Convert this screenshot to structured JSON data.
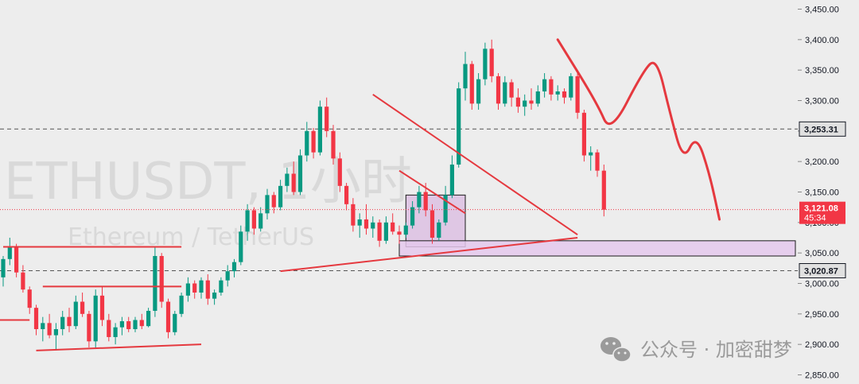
{
  "chart_data": {
    "type": "candlestick",
    "symbol_watermark": "ETHUSDT, 1小时",
    "pair_watermark": "Ethereum / TetherUS",
    "y_axis": {
      "ticks": [
        2850,
        2900,
        2950,
        3000,
        3050,
        3100,
        3150,
        3200,
        3250,
        3300,
        3350,
        3400,
        3450
      ],
      "tick_labels": [
        "2,850.00",
        "2,900.00",
        "2,950.00",
        "3,000.00",
        "3,050.00",
        "3,100.00",
        "3,150.00",
        "3,200.00",
        "3,250.00",
        "3,300.00",
        "3,350.00",
        "3,400.00",
        "3,450.00"
      ],
      "ylim": [
        2835,
        3465
      ]
    },
    "current_price": {
      "value": 3121.08,
      "label": "3,121.08",
      "countdown": "45:34",
      "color": "#f23645"
    },
    "horizontal_levels": [
      {
        "value": 3253.31,
        "label": "3,253.31"
      },
      {
        "value": 3020.87,
        "label": "3,020.87"
      }
    ],
    "candles": [
      {
        "o": 3010,
        "h": 3045,
        "l": 2995,
        "c": 3040
      },
      {
        "o": 3040,
        "h": 3075,
        "l": 3030,
        "c": 3060
      },
      {
        "o": 3060,
        "h": 3065,
        "l": 3010,
        "c": 3018
      },
      {
        "o": 3018,
        "h": 3030,
        "l": 2985,
        "c": 2990
      },
      {
        "o": 2990,
        "h": 2995,
        "l": 2950,
        "c": 2960
      },
      {
        "o": 2960,
        "h": 2965,
        "l": 2915,
        "c": 2925
      },
      {
        "o": 2925,
        "h": 2945,
        "l": 2905,
        "c": 2935
      },
      {
        "o": 2935,
        "h": 2950,
        "l": 2910,
        "c": 2915
      },
      {
        "o": 2915,
        "h": 2935,
        "l": 2890,
        "c": 2925
      },
      {
        "o": 2925,
        "h": 2955,
        "l": 2915,
        "c": 2945
      },
      {
        "o": 2945,
        "h": 2960,
        "l": 2920,
        "c": 2930
      },
      {
        "o": 2930,
        "h": 2980,
        "l": 2925,
        "c": 2970
      },
      {
        "o": 2970,
        "h": 2985,
        "l": 2945,
        "c": 2950
      },
      {
        "o": 2950,
        "h": 2955,
        "l": 2895,
        "c": 2905
      },
      {
        "o": 2905,
        "h": 2990,
        "l": 2895,
        "c": 2980
      },
      {
        "o": 2980,
        "h": 2995,
        "l": 2930,
        "c": 2940
      },
      {
        "o": 2940,
        "h": 2950,
        "l": 2905,
        "c": 2912
      },
      {
        "o": 2912,
        "h": 2935,
        "l": 2900,
        "c": 2928
      },
      {
        "o": 2928,
        "h": 2945,
        "l": 2915,
        "c": 2938
      },
      {
        "o": 2938,
        "h": 2945,
        "l": 2920,
        "c": 2925
      },
      {
        "o": 2925,
        "h": 2945,
        "l": 2920,
        "c": 2940
      },
      {
        "o": 2940,
        "h": 2950,
        "l": 2925,
        "c": 2930
      },
      {
        "o": 2930,
        "h": 2960,
        "l": 2928,
        "c": 2955
      },
      {
        "o": 2955,
        "h": 3060,
        "l": 2945,
        "c": 3045
      },
      {
        "o": 3045,
        "h": 3050,
        "l": 2960,
        "c": 2970
      },
      {
        "o": 2970,
        "h": 2975,
        "l": 2910,
        "c": 2920
      },
      {
        "o": 2920,
        "h": 2955,
        "l": 2915,
        "c": 2950
      },
      {
        "o": 2950,
        "h": 2985,
        "l": 2945,
        "c": 2980
      },
      {
        "o": 2980,
        "h": 3010,
        "l": 2970,
        "c": 3000
      },
      {
        "o": 3000,
        "h": 3005,
        "l": 2975,
        "c": 2985
      },
      {
        "o": 2985,
        "h": 3010,
        "l": 2975,
        "c": 3005
      },
      {
        "o": 3005,
        "h": 3015,
        "l": 2965,
        "c": 2975
      },
      {
        "o": 2975,
        "h": 2990,
        "l": 2965,
        "c": 2985
      },
      {
        "o": 2985,
        "h": 3010,
        "l": 2980,
        "c": 3005
      },
      {
        "o": 3005,
        "h": 3030,
        "l": 2995,
        "c": 3020
      },
      {
        "o": 3020,
        "h": 3040,
        "l": 3010,
        "c": 3035
      },
      {
        "o": 3035,
        "h": 3095,
        "l": 3030,
        "c": 3085
      },
      {
        "o": 3085,
        "h": 3130,
        "l": 3070,
        "c": 3120
      },
      {
        "o": 3120,
        "h": 3125,
        "l": 3080,
        "c": 3090
      },
      {
        "o": 3090,
        "h": 3125,
        "l": 3085,
        "c": 3115
      },
      {
        "o": 3115,
        "h": 3155,
        "l": 3105,
        "c": 3145
      },
      {
        "o": 3145,
        "h": 3150,
        "l": 3115,
        "c": 3125
      },
      {
        "o": 3125,
        "h": 3170,
        "l": 3120,
        "c": 3160
      },
      {
        "o": 3160,
        "h": 3190,
        "l": 3150,
        "c": 3180
      },
      {
        "o": 3180,
        "h": 3200,
        "l": 3145,
        "c": 3150
      },
      {
        "o": 3150,
        "h": 3220,
        "l": 3145,
        "c": 3210
      },
      {
        "o": 3210,
        "h": 3265,
        "l": 3200,
        "c": 3250
      },
      {
        "o": 3250,
        "h": 3255,
        "l": 3205,
        "c": 3215
      },
      {
        "o": 3215,
        "h": 3300,
        "l": 3210,
        "c": 3290
      },
      {
        "o": 3290,
        "h": 3305,
        "l": 3240,
        "c": 3250
      },
      {
        "o": 3250,
        "h": 3260,
        "l": 3195,
        "c": 3205
      },
      {
        "o": 3205,
        "h": 3215,
        "l": 3150,
        "c": 3160
      },
      {
        "o": 3160,
        "h": 3165,
        "l": 3120,
        "c": 3130
      },
      {
        "o": 3130,
        "h": 3140,
        "l": 3085,
        "c": 3095
      },
      {
        "o": 3095,
        "h": 3115,
        "l": 3075,
        "c": 3105
      },
      {
        "o": 3105,
        "h": 3130,
        "l": 3080,
        "c": 3090
      },
      {
        "o": 3090,
        "h": 3110,
        "l": 3075,
        "c": 3100
      },
      {
        "o": 3100,
        "h": 3105,
        "l": 3060,
        "c": 3070
      },
      {
        "o": 3070,
        "h": 3110,
        "l": 3065,
        "c": 3100
      },
      {
        "o": 3100,
        "h": 3115,
        "l": 3080,
        "c": 3085
      },
      {
        "o": 3085,
        "h": 3095,
        "l": 3065,
        "c": 3080
      },
      {
        "o": 3080,
        "h": 3100,
        "l": 3075,
        "c": 3095
      },
      {
        "o": 3095,
        "h": 3135,
        "l": 3090,
        "c": 3125
      },
      {
        "o": 3125,
        "h": 3160,
        "l": 3115,
        "c": 3150
      },
      {
        "o": 3150,
        "h": 3165,
        "l": 3110,
        "c": 3120
      },
      {
        "o": 3120,
        "h": 3130,
        "l": 3065,
        "c": 3075
      },
      {
        "o": 3075,
        "h": 3105,
        "l": 3070,
        "c": 3100
      },
      {
        "o": 3100,
        "h": 3160,
        "l": 3095,
        "c": 3145
      },
      {
        "o": 3145,
        "h": 3210,
        "l": 3140,
        "c": 3195
      },
      {
        "o": 3195,
        "h": 3330,
        "l": 3190,
        "c": 3320
      },
      {
        "o": 3320,
        "h": 3380,
        "l": 3300,
        "c": 3360
      },
      {
        "o": 3360,
        "h": 3365,
        "l": 3285,
        "c": 3295
      },
      {
        "o": 3295,
        "h": 3345,
        "l": 3285,
        "c": 3335
      },
      {
        "o": 3335,
        "h": 3395,
        "l": 3325,
        "c": 3385
      },
      {
        "o": 3385,
        "h": 3400,
        "l": 3330,
        "c": 3340
      },
      {
        "o": 3340,
        "h": 3345,
        "l": 3285,
        "c": 3295
      },
      {
        "o": 3295,
        "h": 3340,
        "l": 3290,
        "c": 3330
      },
      {
        "o": 3330,
        "h": 3335,
        "l": 3290,
        "c": 3305
      },
      {
        "o": 3305,
        "h": 3320,
        "l": 3280,
        "c": 3290
      },
      {
        "o": 3290,
        "h": 3310,
        "l": 3275,
        "c": 3300
      },
      {
        "o": 3300,
        "h": 3320,
        "l": 3285,
        "c": 3295
      },
      {
        "o": 3295,
        "h": 3325,
        "l": 3290,
        "c": 3315
      },
      {
        "o": 3315,
        "h": 3345,
        "l": 3305,
        "c": 3335
      },
      {
        "o": 3335,
        "h": 3340,
        "l": 3300,
        "c": 3310
      },
      {
        "o": 3310,
        "h": 3325,
        "l": 3300,
        "c": 3315
      },
      {
        "o": 3315,
        "h": 3320,
        "l": 3295,
        "c": 3305
      },
      {
        "o": 3305,
        "h": 3345,
        "l": 3300,
        "c": 3340
      },
      {
        "o": 3340,
        "h": 3350,
        "l": 3270,
        "c": 3280
      },
      {
        "o": 3280,
        "h": 3285,
        "l": 3200,
        "c": 3210
      },
      {
        "o": 3210,
        "h": 3225,
        "l": 3185,
        "c": 3215
      },
      {
        "o": 3215,
        "h": 3220,
        "l": 3175,
        "c": 3185
      },
      {
        "o": 3185,
        "h": 3195,
        "l": 3110,
        "c": 3121
      }
    ],
    "annotations": {
      "trend_lines": [
        {
          "from": {
            "i": 0,
            "p": 3060
          },
          "to": {
            "i": 27,
            "p": 3060
          }
        },
        {
          "from": {
            "i": -2,
            "p": 2940
          },
          "to": {
            "i": 4,
            "p": 2940
          }
        },
        {
          "from": {
            "i": 6,
            "p": 2995
          },
          "to": {
            "i": 27,
            "p": 2995
          }
        },
        {
          "from": {
            "i": 5,
            "p": 2890
          },
          "to": {
            "i": 30,
            "p": 2900
          }
        },
        {
          "from": {
            "i": 42,
            "p": 3020
          },
          "to": {
            "i": 87,
            "p": 3075
          }
        },
        {
          "from": {
            "i": 56,
            "p": 3310
          },
          "to": {
            "i": 87,
            "p": 3080
          }
        },
        {
          "from": {
            "i": 60,
            "p": 3185
          },
          "to": {
            "i": 70,
            "p": 3115
          }
        }
      ],
      "zones": [
        {
          "i0": 61,
          "i1": 70,
          "p0": 3060,
          "p1": 3145,
          "fill": "#dcbfe2"
        },
        {
          "i0": 60,
          "i1": 120,
          "p0": 3045,
          "p1": 3070,
          "fill": "#e4c8ec"
        }
      ],
      "projection_path": [
        {
          "i": 84,
          "p": 3400
        },
        {
          "i": 90,
          "p": 3295
        },
        {
          "i": 92,
          "p": 3245
        },
        {
          "i": 97,
          "p": 3350
        },
        {
          "i": 99,
          "p": 3370
        },
        {
          "i": 101,
          "p": 3280
        },
        {
          "i": 103,
          "p": 3200
        },
        {
          "i": 105,
          "p": 3245
        },
        {
          "i": 107,
          "p": 3180
        },
        {
          "i": 108.5,
          "p": 3105
        }
      ],
      "color": "#e5393f"
    },
    "colors": {
      "up": "#089981",
      "down": "#f23645",
      "grid_dash": "#555555"
    }
  },
  "brand": {
    "name": "公众号 · 加密甜梦"
  }
}
